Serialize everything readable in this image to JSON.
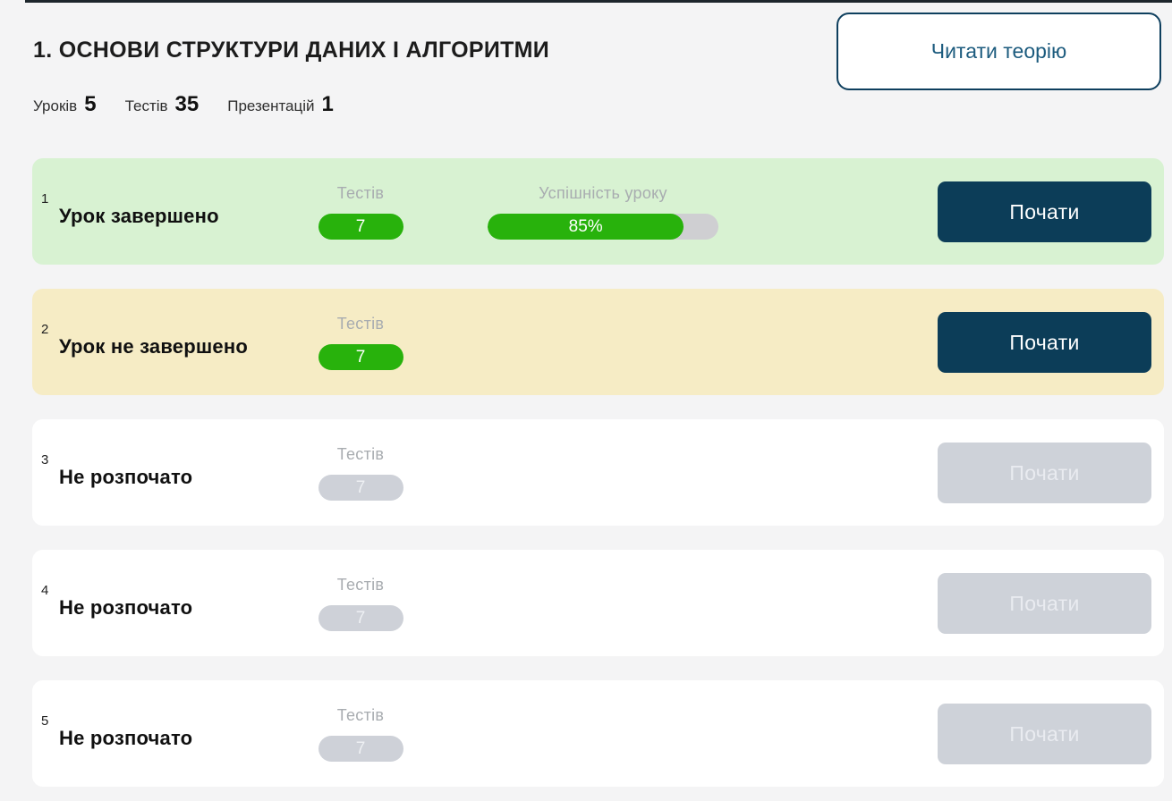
{
  "header": {
    "title": "1. ОСНОВИ СТРУКТУРИ ДАНИХ І АЛГОРИТМИ",
    "theory_button": "Читати теорію",
    "stats": [
      {
        "label": "Уроків",
        "value": "5"
      },
      {
        "label": "Тестів",
        "value": "35"
      },
      {
        "label": "Презентацій",
        "value": "1"
      }
    ]
  },
  "lessons": [
    {
      "number": "1",
      "status": "Урок завершено",
      "state": "completed",
      "tests_label": "Тестів",
      "tests_count": "7",
      "progress_label": "Успішність уроку",
      "progress_percent": "85%",
      "action": "Почати"
    },
    {
      "number": "2",
      "status": "Урок не завершено",
      "state": "incomplete",
      "tests_label": "Тестів",
      "tests_count": "7",
      "action": "Почати"
    },
    {
      "number": "3",
      "status": "Не розпочато",
      "state": "not_started",
      "tests_label": "Тестів",
      "tests_count": "7",
      "action": "Почати"
    },
    {
      "number": "4",
      "status": "Не розпочато",
      "state": "not_started",
      "tests_label": "Тестів",
      "tests_count": "7",
      "action": "Почати"
    },
    {
      "number": "5",
      "status": "Не розпочато",
      "state": "not_started",
      "tests_label": "Тестів",
      "tests_count": "7",
      "action": "Почати"
    }
  ],
  "colors": {
    "page_background": "#f4f4f5",
    "completed_row": "#d8f2d2",
    "incomplete_row": "#f6ecc5",
    "not_started_row": "#ffffff",
    "accent_green": "#28b20c",
    "accent_navy": "#0c3d58",
    "disabled_gray": "#ced2d9",
    "label_gray": "#a8acb0"
  }
}
